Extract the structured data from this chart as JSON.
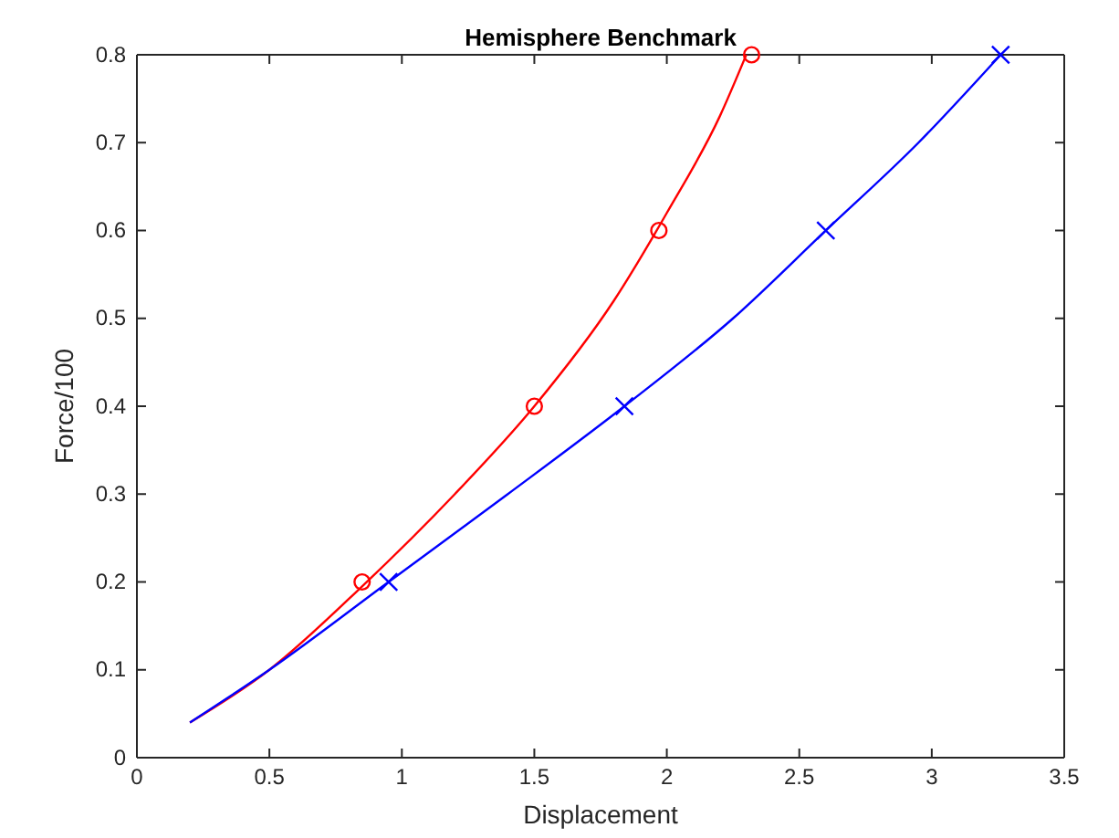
{
  "chart_data": {
    "type": "line",
    "title": "Hemisphere Benchmark",
    "xlabel": "Displacement",
    "ylabel": "Force/100",
    "xlim": [
      0,
      3.5
    ],
    "xticks": [
      0,
      0.5,
      1,
      1.5,
      2,
      2.5,
      3,
      3.5
    ],
    "ylim": [
      0,
      0.8
    ],
    "yticks": [
      0,
      0.1,
      0.2,
      0.3,
      0.4,
      0.5,
      0.6,
      0.7,
      0.8
    ],
    "grid": false,
    "series": [
      {
        "type": "line",
        "color": "#ff0000",
        "marker": "none",
        "x": [
          0.2,
          0.5,
          0.85,
          1.2,
          1.5,
          1.8,
          2.0,
          2.2,
          2.3
        ],
        "values": [
          0.04,
          0.1,
          0.195,
          0.3,
          0.4,
          0.52,
          0.62,
          0.73,
          0.8
        ]
      },
      {
        "type": "line",
        "color": "#0000ff",
        "marker": "none",
        "x": [
          0.2,
          0.5,
          0.95,
          1.4,
          1.84,
          2.25,
          2.6,
          2.95,
          3.26
        ],
        "values": [
          0.04,
          0.1,
          0.2,
          0.3,
          0.4,
          0.5,
          0.6,
          0.7,
          0.8
        ]
      },
      {
        "type": "scatter",
        "color": "#ff0000",
        "marker": "circle",
        "x": [
          0.85,
          1.5,
          1.97,
          2.32
        ],
        "values": [
          0.2,
          0.4,
          0.6,
          0.8
        ]
      },
      {
        "type": "scatter",
        "color": "#0000ff",
        "marker": "cross",
        "x": [
          0.95,
          1.84,
          2.6,
          3.26
        ],
        "values": [
          0.2,
          0.4,
          0.6,
          0.8
        ]
      }
    ]
  }
}
